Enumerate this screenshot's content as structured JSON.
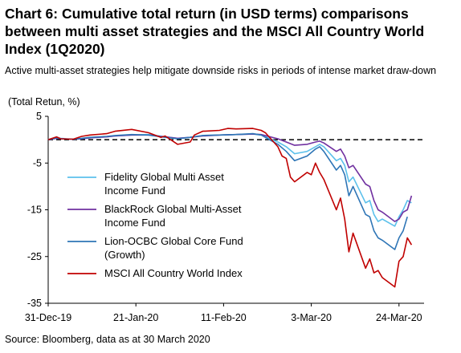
{
  "title": "Chart 6: Cumulative total return (in USD terms) comparisons between multi asset strategies and the MSCI All Country World Index (1Q2020)",
  "subtitle": "Active multi-asset strategies help mitigate downside risks in periods of intense market draw-down",
  "source": "Source: Bloomberg, data as at 30 March 2020",
  "chart_data": {
    "type": "line",
    "ylabel": "(Total Retun, %)",
    "ylim": [
      -35,
      5
    ],
    "yticks": [
      5,
      -5,
      -15,
      -25,
      -35
    ],
    "x_range": [
      "2019-12-31",
      "2020-03-30"
    ],
    "xticks": [
      "31-Dec-19",
      "21-Jan-20",
      "11-Feb-20",
      "3-Mar-20",
      "24-Mar-20"
    ],
    "reference_line": 0,
    "legend_position": "left",
    "series": [
      {
        "name": "Fidelity Global Multi Asset Income Fund",
        "color": "#5bc0eb",
        "points": [
          [
            "2019-12-31",
            0
          ],
          [
            "2020-01-02",
            0.5
          ],
          [
            "2020-01-03",
            0.3
          ],
          [
            "2020-01-06",
            0.1
          ],
          [
            "2020-01-08",
            0.2
          ],
          [
            "2020-01-10",
            0.4
          ],
          [
            "2020-01-14",
            0.6
          ],
          [
            "2020-01-16",
            0.8
          ],
          [
            "2020-01-20",
            1.0
          ],
          [
            "2020-01-24",
            1.1
          ],
          [
            "2020-01-28",
            0.6
          ],
          [
            "2020-01-31",
            0.3
          ],
          [
            "2020-02-03",
            0.5
          ],
          [
            "2020-02-06",
            0.9
          ],
          [
            "2020-02-10",
            1.0
          ],
          [
            "2020-02-14",
            1.1
          ],
          [
            "2020-02-18",
            1.2
          ],
          [
            "2020-02-20",
            1.0
          ],
          [
            "2020-02-24",
            -0.5
          ],
          [
            "2020-02-26",
            -1.5
          ],
          [
            "2020-02-28",
            -3.0
          ],
          [
            "2020-03-02",
            -2.5
          ],
          [
            "2020-03-04",
            -1.5
          ],
          [
            "2020-03-05",
            -1.0
          ],
          [
            "2020-03-06",
            -1.5
          ],
          [
            "2020-03-09",
            -4.5
          ],
          [
            "2020-03-10",
            -4.0
          ],
          [
            "2020-03-11",
            -5.5
          ],
          [
            "2020-03-12",
            -9.0
          ],
          [
            "2020-03-13",
            -8.0
          ],
          [
            "2020-03-16",
            -13.5
          ],
          [
            "2020-03-17",
            -13.0
          ],
          [
            "2020-03-18",
            -16.0
          ],
          [
            "2020-03-19",
            -17.5
          ],
          [
            "2020-03-20",
            -17.0
          ],
          [
            "2020-03-23",
            -18.5
          ],
          [
            "2020-03-24",
            -16.5
          ],
          [
            "2020-03-25",
            -15.0
          ],
          [
            "2020-03-26",
            -13.0
          ],
          [
            "2020-03-27",
            -13.5
          ]
        ]
      },
      {
        "name": "BlackRock Global Multi-Asset Income Fund",
        "color": "#7030a0",
        "points": [
          [
            "2019-12-31",
            0
          ],
          [
            "2020-01-02",
            0.3
          ],
          [
            "2020-01-03",
            0.2
          ],
          [
            "2020-01-06",
            0.1
          ],
          [
            "2020-01-08",
            0.2
          ],
          [
            "2020-01-10",
            0.4
          ],
          [
            "2020-01-14",
            0.6
          ],
          [
            "2020-01-16",
            0.8
          ],
          [
            "2020-01-20",
            1.0
          ],
          [
            "2020-01-24",
            1.0
          ],
          [
            "2020-01-28",
            0.6
          ],
          [
            "2020-01-31",
            0.3
          ],
          [
            "2020-02-03",
            0.5
          ],
          [
            "2020-02-06",
            0.8
          ],
          [
            "2020-02-10",
            1.0
          ],
          [
            "2020-02-14",
            1.1
          ],
          [
            "2020-02-18",
            1.2
          ],
          [
            "2020-02-20",
            1.1
          ],
          [
            "2020-02-24",
            0.2
          ],
          [
            "2020-02-26",
            -0.5
          ],
          [
            "2020-02-28",
            -1.2
          ],
          [
            "2020-03-02",
            -1.0
          ],
          [
            "2020-03-04",
            -0.5
          ],
          [
            "2020-03-05",
            -0.3
          ],
          [
            "2020-03-06",
            -0.7
          ],
          [
            "2020-03-09",
            -2.5
          ],
          [
            "2020-03-10",
            -2.0
          ],
          [
            "2020-03-11",
            -3.5
          ],
          [
            "2020-03-12",
            -6.0
          ],
          [
            "2020-03-13",
            -5.5
          ],
          [
            "2020-03-16",
            -9.5
          ],
          [
            "2020-03-17",
            -10.0
          ],
          [
            "2020-03-18",
            -13.0
          ],
          [
            "2020-03-19",
            -15.0
          ],
          [
            "2020-03-20",
            -15.5
          ],
          [
            "2020-03-23",
            -17.5
          ],
          [
            "2020-03-24",
            -17.0
          ],
          [
            "2020-03-25",
            -15.5
          ],
          [
            "2020-03-26",
            -15.0
          ],
          [
            "2020-03-27",
            -12.0
          ]
        ]
      },
      {
        "name": "Lion-OCBC Global Core Fund (Growth)",
        "color": "#2e75b6",
        "points": [
          [
            "2019-12-31",
            0
          ],
          [
            "2020-01-02",
            0.4
          ],
          [
            "2020-01-03",
            0.2
          ],
          [
            "2020-01-06",
            0.1
          ],
          [
            "2020-01-08",
            0.3
          ],
          [
            "2020-01-10",
            0.5
          ],
          [
            "2020-01-14",
            0.7
          ],
          [
            "2020-01-16",
            0.9
          ],
          [
            "2020-01-20",
            1.1
          ],
          [
            "2020-01-24",
            1.0
          ],
          [
            "2020-01-28",
            0.5
          ],
          [
            "2020-01-31",
            0.2
          ],
          [
            "2020-02-03",
            0.5
          ],
          [
            "2020-02-06",
            0.9
          ],
          [
            "2020-02-10",
            1.0
          ],
          [
            "2020-02-14",
            1.1
          ],
          [
            "2020-02-18",
            1.3
          ],
          [
            "2020-02-20",
            1.0
          ],
          [
            "2020-02-24",
            -1.0
          ],
          [
            "2020-02-26",
            -2.5
          ],
          [
            "2020-02-28",
            -4.5
          ],
          [
            "2020-03-02",
            -3.5
          ],
          [
            "2020-03-04",
            -2.0
          ],
          [
            "2020-03-05",
            -1.5
          ],
          [
            "2020-03-06",
            -2.5
          ],
          [
            "2020-03-09",
            -6.5
          ],
          [
            "2020-03-10",
            -5.5
          ],
          [
            "2020-03-11",
            -7.5
          ],
          [
            "2020-03-12",
            -12.0
          ],
          [
            "2020-03-13",
            -10.0
          ],
          [
            "2020-03-16",
            -16.0
          ],
          [
            "2020-03-17",
            -16.5
          ],
          [
            "2020-03-18",
            -19.5
          ],
          [
            "2020-03-19",
            -21.0
          ],
          [
            "2020-03-20",
            -21.5
          ],
          [
            "2020-03-23",
            -23.5
          ],
          [
            "2020-03-24",
            -21.0
          ],
          [
            "2020-03-25",
            -19.5
          ],
          [
            "2020-03-26",
            -16.5
          ]
        ]
      },
      {
        "name": "MSCI All Country World Index",
        "color": "#c00000",
        "points": [
          [
            "2019-12-31",
            0
          ],
          [
            "2020-01-02",
            0.6
          ],
          [
            "2020-01-03",
            0.2
          ],
          [
            "2020-01-06",
            0.1
          ],
          [
            "2020-01-08",
            0.7
          ],
          [
            "2020-01-10",
            1.0
          ],
          [
            "2020-01-14",
            1.3
          ],
          [
            "2020-01-16",
            1.8
          ],
          [
            "2020-01-20",
            2.2
          ],
          [
            "2020-01-24",
            1.5
          ],
          [
            "2020-01-27",
            0.5
          ],
          [
            "2020-01-28",
            0.8
          ],
          [
            "2020-01-31",
            -1.0
          ],
          [
            "2020-02-03",
            -0.5
          ],
          [
            "2020-02-04",
            1.0
          ],
          [
            "2020-02-06",
            1.8
          ],
          [
            "2020-02-10",
            2.0
          ],
          [
            "2020-02-12",
            2.4
          ],
          [
            "2020-02-14",
            2.3
          ],
          [
            "2020-02-18",
            2.4
          ],
          [
            "2020-02-20",
            2.0
          ],
          [
            "2020-02-21",
            1.5
          ],
          [
            "2020-02-24",
            -1.5
          ],
          [
            "2020-02-25",
            -3.5
          ],
          [
            "2020-02-26",
            -4.0
          ],
          [
            "2020-02-27",
            -8.0
          ],
          [
            "2020-02-28",
            -9.0
          ],
          [
            "2020-03-02",
            -7.0
          ],
          [
            "2020-03-03",
            -7.5
          ],
          [
            "2020-03-04",
            -5.0
          ],
          [
            "2020-03-05",
            -7.0
          ],
          [
            "2020-03-06",
            -8.5
          ],
          [
            "2020-03-09",
            -15.0
          ],
          [
            "2020-03-10",
            -12.5
          ],
          [
            "2020-03-11",
            -17.0
          ],
          [
            "2020-03-12",
            -24.0
          ],
          [
            "2020-03-13",
            -20.0
          ],
          [
            "2020-03-16",
            -27.5
          ],
          [
            "2020-03-17",
            -25.5
          ],
          [
            "2020-03-18",
            -28.5
          ],
          [
            "2020-03-19",
            -28.0
          ],
          [
            "2020-03-20",
            -29.5
          ],
          [
            "2020-03-23",
            -31.5
          ],
          [
            "2020-03-24",
            -26.0
          ],
          [
            "2020-03-25",
            -25.0
          ],
          [
            "2020-03-26",
            -21.0
          ],
          [
            "2020-03-27",
            -22.5
          ]
        ]
      }
    ]
  }
}
